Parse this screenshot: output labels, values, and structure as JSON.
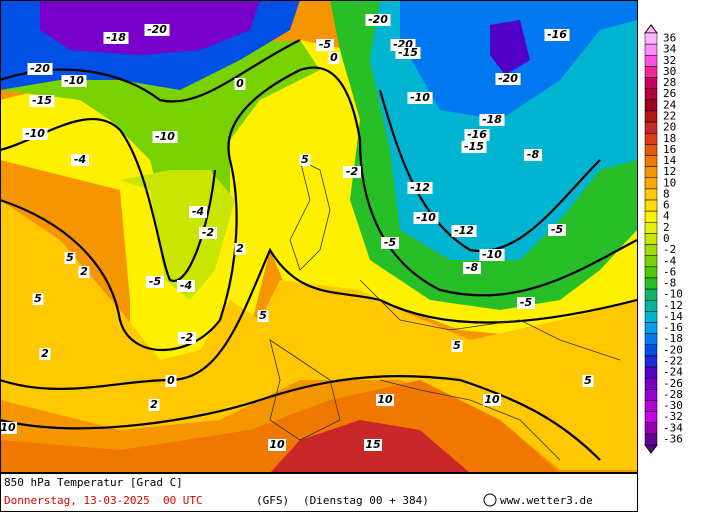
{
  "map": {
    "contour_labels": [
      -20,
      -20,
      -20,
      -20,
      -20,
      -10,
      -10,
      -10,
      -10,
      -10,
      -10,
      -15,
      -15,
      -15,
      -5,
      -5,
      -5,
      -5,
      -5,
      0,
      0,
      0,
      5,
      5,
      5,
      5,
      5,
      5,
      10,
      10,
      10,
      10,
      15,
      -2,
      -2,
      -2,
      2,
      2,
      2,
      2,
      -4,
      -4,
      -4,
      -8,
      -8,
      -12,
      -12,
      -16,
      -16,
      -18,
      -18
    ]
  },
  "legend": {
    "labels": [
      36,
      34,
      32,
      30,
      28,
      26,
      24,
      22,
      20,
      18,
      16,
      14,
      12,
      10,
      8,
      6,
      4,
      2,
      0,
      -2,
      -4,
      -6,
      -8,
      -10,
      -12,
      -14,
      -16,
      -18,
      -20,
      -22,
      -24,
      -26,
      -28,
      -30,
      -32,
      -34,
      -36
    ],
    "colors": [
      "#ffb4ff",
      "#ff8cff",
      "#ff50e6",
      "#f0289c",
      "#c80064",
      "#b4003c",
      "#a00020",
      "#b41414",
      "#c82828",
      "#dc3c14",
      "#e65a0a",
      "#f07800",
      "#f59600",
      "#faaa00",
      "#ffc800",
      "#ffdc00",
      "#fff000",
      "#e6f000",
      "#c8e600",
      "#a0dc00",
      "#78d200",
      "#50c800",
      "#28be28",
      "#14b464",
      "#00b4a0",
      "#00b4d2",
      "#00a0f0",
      "#0078f0",
      "#0050e6",
      "#1e28dc",
      "#5000c8",
      "#7800c8",
      "#9600d2",
      "#b400dc",
      "#c800e6",
      "#9600b4",
      "#640096"
    ]
  },
  "footer": {
    "title": "850 hPa Temperatur [Grad C]",
    "date": "Donnerstag, 13-03-2025  00 UTC",
    "model": "(GFS)",
    "run": "(Dienstag 00 + 384)",
    "site": "www.wetter3.de"
  }
}
